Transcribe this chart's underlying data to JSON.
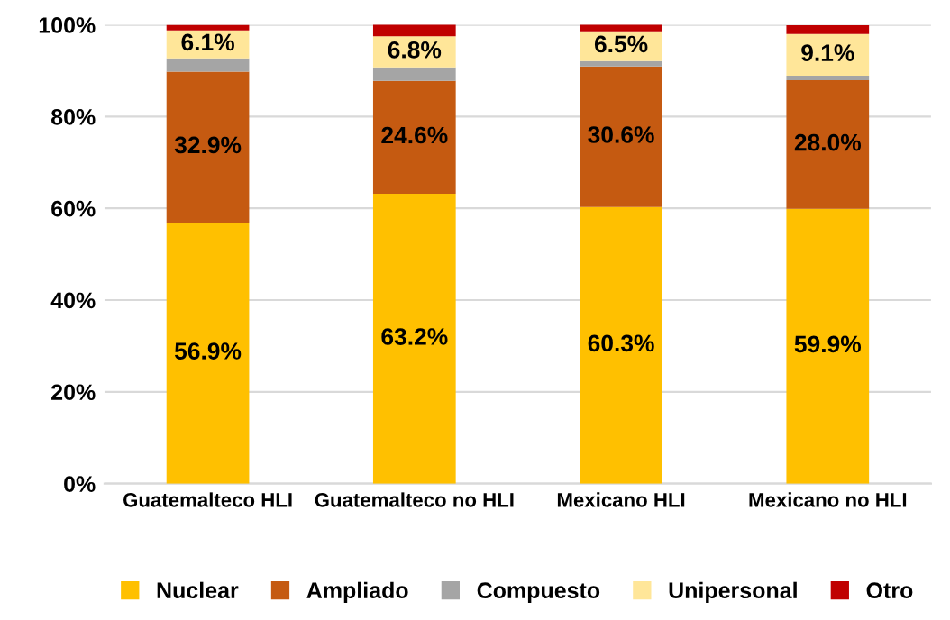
{
  "chart_data": {
    "type": "bar",
    "stacked": true,
    "categories": [
      "Guatemalteco HLI",
      "Guatemalteco no HLI",
      "Mexicano HLI",
      "Mexicano no HLI"
    ],
    "series": [
      {
        "name": "Nuclear",
        "color": "#ffc000",
        "values": [
          56.9,
          63.2,
          60.3,
          59.9
        ],
        "value_labels": [
          "56.9%",
          "63.2%",
          "60.3%",
          "59.9%"
        ]
      },
      {
        "name": "Ampliado",
        "color": "#c55a11",
        "values": [
          32.9,
          24.6,
          30.6,
          28.0
        ],
        "value_labels": [
          "32.9%",
          "24.6%",
          "30.6%",
          "28.0%"
        ]
      },
      {
        "name": "Compuesto",
        "color": "#a5a5a5",
        "values": [
          2.9,
          2.9,
          1.2,
          1.0
        ]
      },
      {
        "name": "Unipersonal",
        "color": "#ffe699",
        "values": [
          6.1,
          6.8,
          6.5,
          9.1
        ],
        "value_labels": [
          "6.1%",
          "6.8%",
          "6.5%",
          "9.1%"
        ]
      },
      {
        "name": "Otro",
        "color": "#c00000",
        "values": [
          1.2,
          2.9,
          1.6,
          1.9
        ]
      }
    ],
    "ylim": [
      0,
      100
    ],
    "yticks": [
      {
        "value": 0,
        "label": "0%"
      },
      {
        "value": 20,
        "label": "20%"
      },
      {
        "value": 40,
        "label": "40%"
      },
      {
        "value": 60,
        "label": "60%"
      },
      {
        "value": 80,
        "label": "80%"
      },
      {
        "value": 100,
        "label": "100%"
      }
    ],
    "grid": "y",
    "legend": "bottom"
  }
}
